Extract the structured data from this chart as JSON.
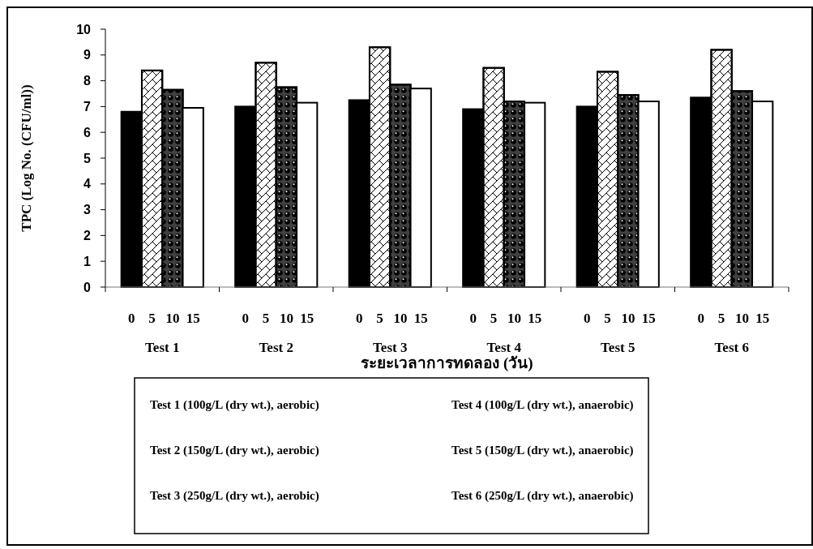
{
  "chart_data": {
    "type": "bar",
    "xlabel": "ระยะเวลาการทดลอง (วัน)",
    "ylabel": "TPC (Log No. (CFU/ml))",
    "categories": [
      "Test 1",
      "Test 2",
      "Test 3",
      "Test 4",
      "Test 5",
      "Test 6"
    ],
    "series": [
      {
        "name": "0",
        "color": "#000000",
        "values": [
          6.8,
          7.0,
          7.25,
          6.9,
          7.0,
          7.35
        ]
      },
      {
        "name": "5",
        "color": "#ffffff",
        "values": [
          8.4,
          8.7,
          9.3,
          8.5,
          8.35,
          9.2
        ]
      },
      {
        "name": "10",
        "color": "#404040",
        "values": [
          7.65,
          7.75,
          7.85,
          7.2,
          7.45,
          7.6
        ]
      },
      {
        "name": "15",
        "color": "#ffffff",
        "values": [
          6.95,
          7.15,
          7.7,
          7.15,
          7.2,
          7.2
        ]
      }
    ],
    "ylim": [
      0,
      10
    ],
    "yticks": [
      0,
      1,
      2,
      3,
      4,
      5,
      6,
      7,
      8,
      9,
      10
    ],
    "grid": false,
    "annotations": [
      "Test 1 (100g/L (dry wt.), aerobic)",
      "Test 2 (150g/L (dry wt.), aerobic)",
      "Test 3 (250g/L (dry wt.), aerobic)",
      "Test 4 (100g/L (dry wt.), anaerobic)",
      "Test 5 (150g/L (dry wt.), anaerobic)",
      "Test 6 (250g/L (dry wt.), anaerobic)"
    ]
  }
}
